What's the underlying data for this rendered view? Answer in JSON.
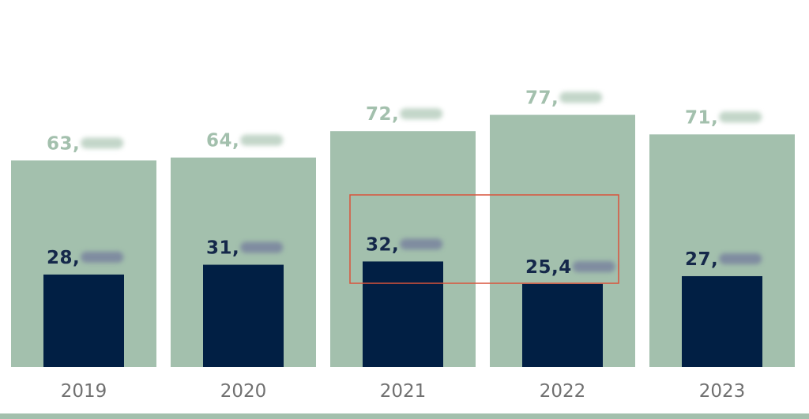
{
  "chart_data": {
    "type": "bar",
    "categories": [
      "2019",
      "2020",
      "2021",
      "2022",
      "2023"
    ],
    "series": [
      {
        "values": [
          63350,
          64250,
          72350,
          77350,
          71350
        ],
        "color": "#a3c0ad"
      },
      {
        "values": [
          28350,
          31350,
          32350,
          25450,
          27850
        ],
        "color": "#011f44"
      }
    ],
    "labels": {
      "outer": [
        "63,",
        "64,",
        "72,",
        "77,",
        "71,"
      ],
      "inner": [
        "28,",
        "31,",
        "32,",
        "25,4",
        "27,"
      ]
    },
    "ylim": [
      0,
      80000
    ],
    "grid": false,
    "legend": "none",
    "highlight": {
      "categories": [
        "2021",
        "2022"
      ],
      "series": 1,
      "color": "#d9533b"
    }
  }
}
